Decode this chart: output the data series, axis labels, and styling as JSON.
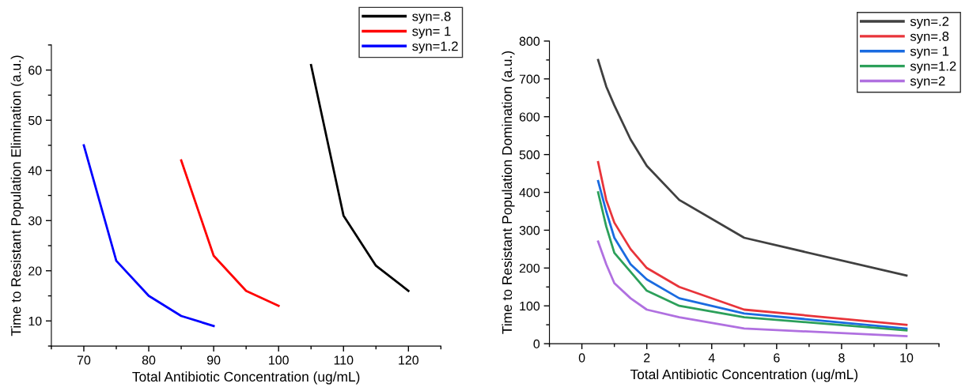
{
  "chart_data": [
    {
      "type": "line",
      "xlabel": "Total Antibiotic Concentration (ug/mL)",
      "ylabel": "Time to Resistant Population Elimination (a.u.)",
      "xlim": [
        65,
        125
      ],
      "ylim": [
        5,
        65
      ],
      "xticks": [
        70,
        80,
        90,
        100,
        110,
        120
      ],
      "yticks": [
        10,
        20,
        30,
        40,
        50,
        60
      ],
      "grid": false,
      "legend": "top right",
      "marker": "none",
      "line_style": "solid",
      "series": [
        {
          "name": "syn=.8",
          "color": "#000000",
          "x": [
            105,
            110,
            115,
            120
          ],
          "values": [
            61,
            31,
            21,
            16
          ]
        },
        {
          "name": "syn= 1",
          "color": "#ff0000",
          "x": [
            85,
            90,
            95,
            100
          ],
          "values": [
            42,
            23,
            16,
            13
          ]
        },
        {
          "name": "syn=1.2",
          "color": "#0000ff",
          "x": [
            70,
            75,
            80,
            85,
            90
          ],
          "values": [
            45,
            22,
            15,
            11,
            9
          ]
        }
      ]
    },
    {
      "type": "line",
      "xlabel": "Total Antibiotic Concentration (ug/mL)",
      "ylabel": "Time to Resistant Population Domination (a.u.)",
      "xlim": [
        -1,
        11
      ],
      "ylim": [
        0,
        800
      ],
      "xticks": [
        0,
        2,
        4,
        6,
        8,
        10
      ],
      "yticks": [
        0,
        100,
        200,
        300,
        400,
        500,
        600,
        700,
        800
      ],
      "grid": false,
      "legend": "top right",
      "marker": "none",
      "line_style": "solid",
      "series": [
        {
          "name": "syn=.2",
          "color": "#404040",
          "x": [
            0.5,
            0.75,
            1,
            1.5,
            2,
            3,
            5,
            10
          ],
          "values": [
            750,
            680,
            630,
            540,
            470,
            380,
            280,
            180
          ]
        },
        {
          "name": "syn=.8",
          "color": "#e8343a",
          "x": [
            0.5,
            0.75,
            1,
            1.5,
            2,
            3,
            5,
            10
          ],
          "values": [
            480,
            380,
            320,
            250,
            200,
            150,
            90,
            50
          ]
        },
        {
          "name": "syn= 1",
          "color": "#1a6be0",
          "x": [
            0.5,
            0.75,
            1,
            1.5,
            2,
            3,
            5,
            10
          ],
          "values": [
            430,
            350,
            280,
            210,
            170,
            120,
            80,
            40
          ]
        },
        {
          "name": "syn=1.2",
          "color": "#2ca05a",
          "x": [
            0.5,
            0.75,
            1,
            1.5,
            2,
            3,
            5,
            10
          ],
          "values": [
            400,
            310,
            240,
            190,
            140,
            100,
            70,
            35
          ]
        },
        {
          "name": "syn=2",
          "color": "#b070e0",
          "x": [
            0.5,
            0.75,
            1,
            1.5,
            2,
            3,
            5,
            10
          ],
          "values": [
            270,
            210,
            160,
            120,
            90,
            70,
            40,
            20
          ]
        }
      ]
    }
  ]
}
